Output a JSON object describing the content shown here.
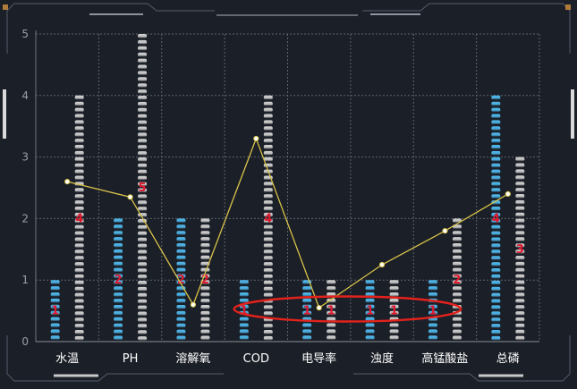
{
  "chart_data": {
    "type": "bar",
    "categories": [
      "水温",
      "PH",
      "溶解氧",
      "COD",
      "电导率",
      "浊度",
      "高锰酸盐",
      "总磷"
    ],
    "series": [
      {
        "values": [
          1,
          2,
          2,
          1,
          1,
          1,
          1,
          4
        ],
        "color": "#4fb8ec"
      },
      {
        "values": [
          4,
          5,
          2,
          4,
          1,
          1,
          2,
          3
        ],
        "color": "#d0d0d0"
      }
    ],
    "line": {
      "values": [
        2.6,
        2.35,
        0.6,
        3.3,
        0.55,
        1.25,
        1.8,
        2.4
      ],
      "color": "#d8c24a"
    },
    "ylim": [
      0,
      5
    ],
    "yticks": [
      "0",
      "1",
      "2",
      "3",
      "4",
      "5"
    ],
    "grid": true,
    "label_color": "#e0182d",
    "annotation": {
      "shape": "ellipse",
      "color": "#e3221c",
      "spans": [
        "电导率",
        "高锰酸盐"
      ]
    }
  }
}
